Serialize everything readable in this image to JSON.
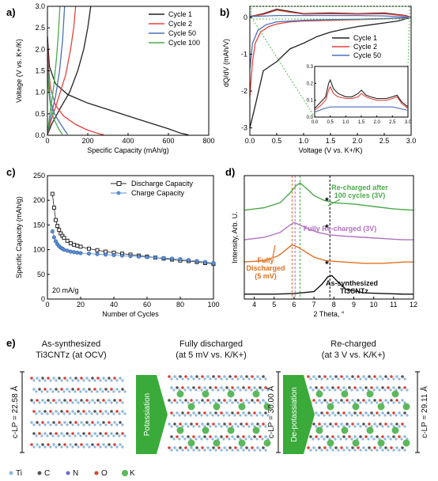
{
  "panel_labels": [
    "a)",
    "b)",
    "c)",
    "d)",
    "e)"
  ],
  "chart_data": [
    {
      "panel": "a)",
      "type": "line",
      "xlabel": "Specific Capacity (mAh/g)",
      "ylabel": "Voltage (V vs. K+/K)",
      "xlim": [
        0,
        800
      ],
      "ylim": [
        0,
        3.0
      ],
      "xticks": [
        "0",
        "200",
        "400",
        "600",
        "800"
      ],
      "yticks": [
        "0.0",
        "0.5",
        "1.0",
        "1.5",
        "2.0",
        "2.5",
        "3.0"
      ],
      "legend_position": "top-right",
      "series": [
        {
          "name": "Cycle 1",
          "color": "#222222",
          "discharge": [
            [
              0,
              2.3
            ],
            [
              10,
              1.6
            ],
            [
              40,
              1.2
            ],
            [
              100,
              0.95
            ],
            [
              200,
              0.75
            ],
            [
              300,
              0.6
            ],
            [
              400,
              0.45
            ],
            [
              500,
              0.3
            ],
            [
              600,
              0.15
            ],
            [
              660,
              0.05
            ],
            [
              700,
              0.01
            ]
          ],
          "charge": [
            [
              0,
              0.01
            ],
            [
              20,
              0.25
            ],
            [
              60,
              0.6
            ],
            [
              110,
              1.0
            ],
            [
              150,
              1.5
            ],
            [
              180,
              2.0
            ],
            [
              200,
              2.5
            ],
            [
              215,
              3.0
            ]
          ]
        },
        {
          "name": "Cycle 2",
          "color": "#e8413a",
          "discharge": [
            [
              0,
              2.2
            ],
            [
              5,
              1.6
            ],
            [
              15,
              1.1
            ],
            [
              40,
              0.7
            ],
            [
              80,
              0.45
            ],
            [
              140,
              0.25
            ],
            [
              200,
              0.12
            ],
            [
              260,
              0.03
            ],
            [
              280,
              0.01
            ]
          ],
          "charge": [
            [
              0,
              0.01
            ],
            [
              15,
              0.3
            ],
            [
              50,
              0.8
            ],
            [
              90,
              1.4
            ],
            [
              115,
              2.0
            ],
            [
              130,
              2.5
            ],
            [
              140,
              3.0
            ]
          ]
        },
        {
          "name": "Cycle 50",
          "color": "#4a70b8",
          "discharge": [
            [
              0,
              2.0
            ],
            [
              5,
              1.3
            ],
            [
              15,
              0.8
            ],
            [
              35,
              0.5
            ],
            [
              60,
              0.3
            ],
            [
              85,
              0.12
            ],
            [
              100,
              0.02
            ]
          ],
          "charge": [
            [
              0,
              0.02
            ],
            [
              15,
              0.4
            ],
            [
              40,
              0.9
            ],
            [
              60,
              1.5
            ],
            [
              75,
              2.2
            ],
            [
              85,
              3.0
            ]
          ]
        },
        {
          "name": "Cycle 100",
          "color": "#4caa4a",
          "discharge": [
            [
              0,
              1.8
            ],
            [
              5,
              1.1
            ],
            [
              15,
              0.7
            ],
            [
              30,
              0.4
            ],
            [
              50,
              0.2
            ],
            [
              65,
              0.08
            ],
            [
              75,
              0.02
            ]
          ],
          "charge": [
            [
              0,
              0.02
            ],
            [
              12,
              0.5
            ],
            [
              30,
              1.1
            ],
            [
              45,
              1.8
            ],
            [
              55,
              2.4
            ],
            [
              62,
              3.0
            ]
          ]
        }
      ]
    },
    {
      "panel": "b)",
      "type": "line",
      "xlabel": "Voltage (V vs. K+/K)",
      "ylabel": "dQ/dV (mAh/V)",
      "xlim": [
        0,
        3.0
      ],
      "ylim": [
        -3.2,
        0.3
      ],
      "xticks": [
        "0.0",
        "0.5",
        "1.0",
        "1.5",
        "2.0",
        "2.5",
        "3.0"
      ],
      "yticks": [
        "-3",
        "-2",
        "-1",
        "0"
      ],
      "legend_position": "middle-right",
      "series": [
        {
          "name": "Cycle 1",
          "color": "#222222",
          "x": [
            0.0,
            0.1,
            0.25,
            0.5,
            0.75,
            1.0,
            1.25,
            1.5,
            1.75,
            2.0,
            2.25,
            2.5,
            2.75,
            2.95
          ],
          "y": [
            -3.0,
            -2.4,
            -1.45,
            -1.2,
            -0.85,
            -0.7,
            -0.52,
            -0.4,
            -0.32,
            -0.25,
            -0.2,
            -0.15,
            -0.1,
            -0.02
          ],
          "upper_x": [
            0.0,
            0.25,
            0.5,
            0.75,
            1.0,
            1.5,
            2.0,
            2.5,
            2.9,
            3.0
          ],
          "upper_y": [
            0.02,
            0.1,
            0.22,
            0.16,
            0.1,
            0.12,
            0.1,
            0.12,
            0.05,
            0.0
          ]
        },
        {
          "name": "Cycle 2",
          "color": "#e8413a",
          "x": [
            0.0,
            0.05,
            0.1,
            0.2,
            0.35,
            0.5,
            0.75,
            1.0,
            1.5,
            2.0,
            2.5,
            2.95
          ],
          "y": [
            -2.15,
            -1.2,
            -0.7,
            -0.4,
            -0.25,
            -0.18,
            -0.12,
            -0.1,
            -0.08,
            -0.06,
            -0.04,
            -0.01
          ],
          "upper_x": [
            0.0,
            0.25,
            0.5,
            0.75,
            1.0,
            1.5,
            2.0,
            2.5,
            2.9,
            3.0
          ],
          "upper_y": [
            0.02,
            0.08,
            0.2,
            0.14,
            0.09,
            0.1,
            0.09,
            0.1,
            0.04,
            0.0
          ]
        },
        {
          "name": "Cycle 50",
          "color": "#4a70b8",
          "x": [
            0.0,
            0.05,
            0.15,
            0.3,
            0.5,
            1.0,
            1.5,
            2.0,
            2.5,
            2.95
          ],
          "y": [
            -1.4,
            -0.7,
            -0.35,
            -0.2,
            -0.12,
            -0.08,
            -0.06,
            -0.05,
            -0.03,
            -0.01
          ],
          "upper_x": [
            0.0,
            0.5,
            1.0,
            1.5,
            2.0,
            2.5,
            3.0
          ],
          "upper_y": [
            0.02,
            0.05,
            0.05,
            0.05,
            0.05,
            0.04,
            0.0
          ]
        }
      ],
      "inset": {
        "xlim": [
          0,
          3.0
        ],
        "ylim": [
          0,
          0.3
        ],
        "xticks": [
          "0.0",
          "0.5",
          "1.0",
          "1.5",
          "2.0",
          "2.5",
          "3.0"
        ],
        "yticks": [
          "0.0",
          "0.1",
          "0.2",
          "0.3"
        ],
        "series": [
          {
            "name": "Cycle 1",
            "color": "#222222",
            "x": [
              0.0,
              0.2,
              0.35,
              0.45,
              0.5,
              0.6,
              0.75,
              1.0,
              1.2,
              1.4,
              1.5,
              1.65,
              1.8,
              2.0,
              2.3,
              2.5,
              2.65,
              2.8,
              3.0
            ],
            "y": [
              0.05,
              0.09,
              0.12,
              0.2,
              0.22,
              0.17,
              0.14,
              0.12,
              0.12,
              0.14,
              0.16,
              0.13,
              0.12,
              0.11,
              0.11,
              0.12,
              0.13,
              0.09,
              0.06
            ]
          },
          {
            "name": "Cycle 2",
            "color": "#e8413a",
            "x": [
              0.0,
              0.2,
              0.35,
              0.45,
              0.5,
              0.6,
              0.75,
              1.0,
              1.2,
              1.4,
              1.5,
              1.65,
              1.8,
              2.0,
              2.3,
              2.5,
              2.65,
              2.8,
              3.0
            ],
            "y": [
              0.04,
              0.07,
              0.1,
              0.16,
              0.18,
              0.14,
              0.12,
              0.11,
              0.11,
              0.12,
              0.14,
              0.12,
              0.11,
              0.1,
              0.1,
              0.11,
              0.12,
              0.08,
              0.05
            ]
          },
          {
            "name": "Cycle 50",
            "color": "#4a70b8",
            "x": [
              0.0,
              0.3,
              0.5,
              0.75,
              1.0,
              1.5,
              2.0,
              2.5,
              3.0
            ],
            "y": [
              0.03,
              0.05,
              0.06,
              0.06,
              0.06,
              0.06,
              0.06,
              0.06,
              0.04
            ]
          }
        ]
      }
    },
    {
      "panel": "c)",
      "type": "scatter",
      "xlabel": "Number of Cycles",
      "ylabel": "Specific Capacity (mAh/g)",
      "xlim": [
        0,
        100
      ],
      "ylim": [
        0,
        250
      ],
      "xticks": [
        "0",
        "20",
        "40",
        "60",
        "80",
        "100"
      ],
      "yticks": [
        "0",
        "50",
        "100",
        "150",
        "200",
        "250"
      ],
      "annotation": "20 mA/g",
      "legend_position": "top-right",
      "series": [
        {
          "name": "Discharge Capacity",
          "color": "#222222",
          "marker": "square",
          "x": [
            3,
            4,
            5,
            6,
            7,
            8,
            9,
            10,
            12,
            14,
            16,
            18,
            20,
            25,
            30,
            35,
            40,
            45,
            50,
            55,
            60,
            65,
            70,
            75,
            80,
            85,
            90,
            95,
            100
          ],
          "y": [
            213,
            185,
            160,
            148,
            140,
            133,
            128,
            124,
            118,
            113,
            110,
            108,
            106,
            102,
            99,
            96,
            94,
            92,
            90,
            88,
            86,
            84,
            82,
            80,
            78,
            77,
            75,
            73,
            71
          ]
        },
        {
          "name": "Charge Capacity",
          "color": "#5b8fd4",
          "marker": "circle",
          "x": [
            3,
            4,
            5,
            6,
            7,
            8,
            9,
            10,
            12,
            14,
            16,
            18,
            20,
            25,
            30,
            35,
            40,
            45,
            50,
            55,
            60,
            65,
            70,
            75,
            80,
            85,
            90,
            95,
            100
          ],
          "y": [
            137,
            125,
            117,
            111,
            107,
            104,
            102,
            100,
            98,
            96,
            95,
            94,
            93,
            92,
            91,
            90,
            89,
            88,
            87,
            86,
            85,
            84,
            83,
            82,
            81,
            79,
            77,
            75,
            73
          ]
        }
      ]
    },
    {
      "panel": "d)",
      "type": "line",
      "xlabel": "2 Theta, °",
      "ylabel": "Intensity, Arb. U.",
      "xlim": [
        3.5,
        12
      ],
      "xticks": [
        "4",
        "5",
        "6",
        "7",
        "8",
        "9",
        "10",
        "11",
        "12"
      ],
      "vlines": [
        {
          "x": 5.9,
          "color": "#e07020"
        },
        {
          "x": 6.05,
          "color": "#b070c0"
        },
        {
          "x": 6.3,
          "color": "#4caa4a"
        },
        {
          "x": 7.8,
          "color": "#000000"
        }
      ],
      "series": [
        {
          "name": "Re-charged after 100 cycles (3V)",
          "color": "#4caa4a",
          "offset": 3.0,
          "x": [
            3.5,
            4.5,
            5.3,
            5.8,
            6.1,
            6.3,
            6.6,
            7.0,
            7.5,
            8.0,
            9.0,
            10.0,
            11.0,
            12.0
          ],
          "y": [
            0.6,
            0.7,
            0.9,
            1.3,
            1.6,
            1.7,
            1.5,
            1.2,
            1.0,
            0.9,
            0.85,
            0.75,
            0.65,
            0.6
          ]
        },
        {
          "name": "Fully Re-charged (3V)",
          "color": "#b070c0",
          "offset": 2.0,
          "x": [
            3.5,
            4.5,
            5.3,
            5.8,
            6.0,
            6.3,
            6.7,
            7.2,
            7.8,
            8.5,
            9.5,
            10.5,
            11.5,
            12.0
          ],
          "y": [
            0.4,
            0.5,
            0.7,
            1.0,
            1.1,
            1.0,
            0.85,
            0.7,
            0.6,
            0.55,
            0.5,
            0.45,
            0.4,
            0.4
          ]
        },
        {
          "name": "Fully Discharged (5 mV)",
          "color": "#e07020",
          "offset": 1.0,
          "x": [
            3.5,
            4.5,
            5.2,
            5.6,
            5.9,
            6.2,
            6.6,
            7.0,
            7.6,
            8.5,
            9.5,
            10.5,
            11.5,
            12.0
          ],
          "y": [
            0.5,
            0.55,
            0.75,
            1.0,
            1.2,
            1.1,
            0.9,
            0.7,
            0.55,
            0.5,
            0.45,
            0.45,
            0.5,
            0.5
          ]
        },
        {
          "name": "As-synthesized Ti3CNTz",
          "color": "#111111",
          "offset": 0.0,
          "x": [
            3.5,
            5.0,
            6.0,
            7.0,
            7.4,
            7.7,
            7.9,
            8.2,
            8.6,
            9.5,
            10.5,
            11.5,
            12.0
          ],
          "y": [
            0.2,
            0.2,
            0.22,
            0.3,
            0.6,
            0.9,
            0.95,
            0.7,
            0.4,
            0.25,
            0.22,
            0.2,
            0.2
          ]
        }
      ],
      "labels": [
        {
          "text": "Re-charged after",
          "color": "#4caa4a"
        },
        {
          "text": "100 cycles (3V)",
          "color": "#4caa4a"
        },
        {
          "text": "Fully Re-charged (3V)",
          "color": "#b070c0"
        },
        {
          "text": "Fully",
          "color": "#e07020"
        },
        {
          "text": "Discharged",
          "color": "#e07020"
        },
        {
          "text": "(5 mV)",
          "color": "#e07020"
        },
        {
          "text": "As-synthesized",
          "color": "#111111"
        },
        {
          "text": "Ti3CNTz",
          "color": "#111111"
        }
      ]
    }
  ],
  "panel_e": {
    "titles": [
      {
        "line1": "As-synthesized",
        "line2": "Ti3CNTz (at OCV)"
      },
      {
        "line1": "Fully discharged",
        "line2": "(at 5 mV vs. K/K+)"
      },
      {
        "line1": "Re-charged",
        "line2": "(at 3 V vs. K/K+)"
      }
    ],
    "arrows": [
      "Potassiation",
      "De-potassiation"
    ],
    "clp": [
      "c-LP = 22.58 Å",
      "c-LP = 30.00 Å",
      "c-LP = 29.11 Å"
    ],
    "legend": [
      {
        "label": "Ti",
        "color": "#8fb8dc"
      },
      {
        "label": "C",
        "color": "#555555"
      },
      {
        "label": "N",
        "color": "#6a6ad8"
      },
      {
        "label": "O",
        "color": "#e04030"
      },
      {
        "label": "K",
        "color": "#5cb85c"
      }
    ],
    "arrow_color": "#3aaa3a"
  }
}
